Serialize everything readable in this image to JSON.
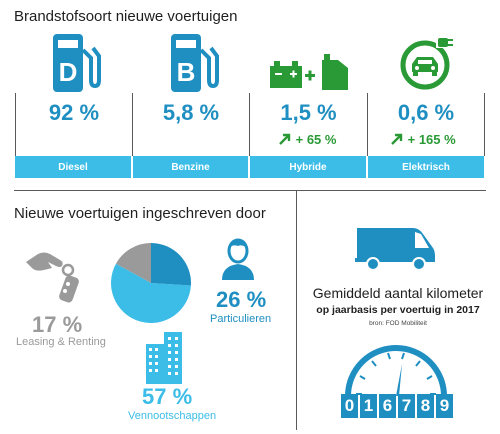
{
  "fuel": {
    "title": "Brandstofsoort nieuwe voertuigen",
    "items": [
      {
        "label": "Diesel",
        "value": "92 %",
        "trend": ""
      },
      {
        "label": "Benzine",
        "value": "5,8 %",
        "trend": ""
      },
      {
        "label": "Hybride",
        "value": "1,5 %",
        "trend": "+ 65 %"
      },
      {
        "label": "Elektrisch",
        "value": "0,6 %",
        "trend": "+ 165 %"
      }
    ],
    "pump_letters": [
      "D",
      "B"
    ],
    "icons": [
      "fuel-pump-diesel-icon",
      "fuel-pump-gasoline-icon",
      "battery-jerrycan-icon",
      "electric-car-plug-icon",
      "trend-up-arrow-icon"
    ],
    "colors": {
      "blue": "#1f8fc2",
      "light_blue": "#3cbde8",
      "green": "#2a9a36",
      "gray": "#9a9a9a"
    }
  },
  "registered": {
    "title": "Nieuwe voertuigen ingeschreven door",
    "leasing": {
      "value": "17 %",
      "label": "Leasing & Renting"
    },
    "private": {
      "value": "26 %",
      "label": "Particulieren"
    },
    "companies": {
      "value": "57 %",
      "label": "Vennootschappen"
    },
    "pie": [
      {
        "name": "Vennootschappen",
        "value": 57,
        "color": "#3cbde8"
      },
      {
        "name": "Leasing & Renting",
        "value": 17,
        "color": "#9a9a9a"
      },
      {
        "name": "Particulieren",
        "value": 26,
        "color": "#1f8fc2"
      }
    ]
  },
  "mileage": {
    "title": "Gemiddeld aantal kilometer",
    "subtitle": "op jaarbasis per voertuig in 2017",
    "source": "bron: FOD Mobiliteit",
    "digits": [
      "0",
      "1",
      "6",
      "7",
      "8",
      "9"
    ]
  }
}
